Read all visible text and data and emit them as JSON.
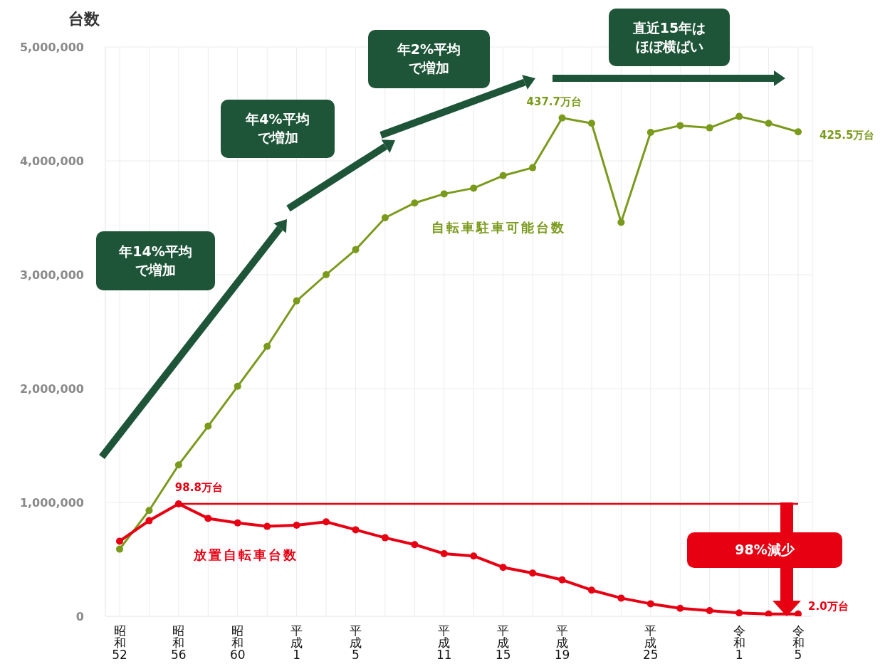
{
  "chart_data": {
    "type": "line",
    "ylabel": "台数",
    "categories": [
      "昭和52",
      null,
      "昭和56",
      null,
      "昭和60",
      null,
      "平成1",
      null,
      "平成5",
      null,
      null,
      "平成11",
      null,
      "平成15",
      null,
      "平成19",
      null,
      null,
      "平成25",
      null,
      null,
      "令和1",
      null,
      "令和5"
    ],
    "series": [
      {
        "name": "自転車駐車可能台数",
        "color": "#7a9a1c",
        "values": [
          590000,
          930000,
          1330000,
          1670000,
          2020000,
          2370000,
          2770000,
          3000000,
          3220000,
          3500000,
          3630000,
          3710000,
          3760000,
          3870000,
          3940000,
          4377000,
          4330000,
          3460000,
          4250000,
          4310000,
          4290000,
          4390000,
          4330000,
          4255000
        ]
      },
      {
        "name": "放置自転車台数",
        "color": "#e60012",
        "values": [
          660000,
          840000,
          988000,
          860000,
          820000,
          790000,
          800000,
          830000,
          760000,
          690000,
          630000,
          550000,
          530000,
          430000,
          380000,
          320000,
          230000,
          160000,
          110000,
          70000,
          50000,
          30000,
          20000,
          20000
        ]
      }
    ],
    "ylim": [
      0,
      5000000
    ],
    "yticks": [
      0,
      {
        "value": 1000000,
        "label": "1,000,000"
      },
      {
        "value": 2000000,
        "label": "2,000,000"
      },
      {
        "value": 3000000,
        "label": "3,000,000"
      },
      {
        "value": 4000000,
        "label": "4,000,000"
      },
      {
        "value": 5000000,
        "label": "5,000,000"
      }
    ],
    "grid": true,
    "marker": "circle",
    "line_style": "solid",
    "ref_lines": [
      {
        "axis": "y",
        "value": 988000,
        "color": "#e60012"
      }
    ],
    "annotations": [
      "年14%平均で増加",
      "年4%平均で増加",
      "年2%平均で増加",
      "直近15年はほぼ横ばい",
      "98%減少",
      {
        "text": "437.7万台",
        "x": "平成19",
        "y": 4377000
      },
      {
        "text": "425.5万台",
        "x": "令和5",
        "y": 4255000
      },
      {
        "text": "98.8万台",
        "x": "昭和56",
        "y": 988000
      },
      {
        "text": "2.0万台",
        "x": "令和5",
        "y": 20000
      }
    ]
  }
}
